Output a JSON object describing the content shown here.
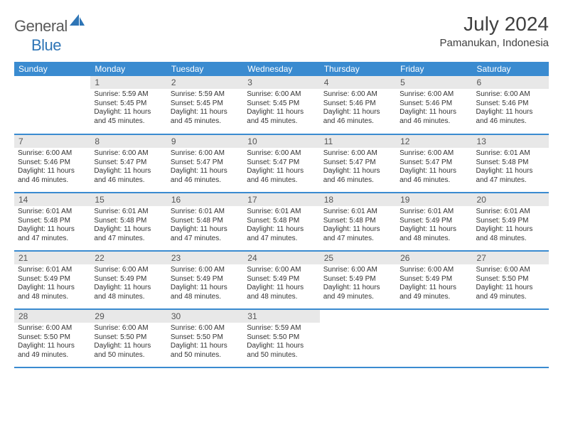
{
  "logo": {
    "text1": "General",
    "text2": "Blue",
    "color1": "#5a5a5a",
    "color2": "#2e75b6"
  },
  "title": "July 2024",
  "location": "Pamanukan, Indonesia",
  "colors": {
    "header_bg": "#3a8bd0",
    "header_fg": "#ffffff",
    "daynum_bg": "#e8e8e8",
    "daynum_fg": "#555555",
    "border": "#3a8bd0",
    "text": "#333333"
  },
  "weekdays": [
    "Sunday",
    "Monday",
    "Tuesday",
    "Wednesday",
    "Thursday",
    "Friday",
    "Saturday"
  ],
  "weeks": [
    [
      {
        "n": "",
        "sr": "",
        "ss": "",
        "dl": ""
      },
      {
        "n": "1",
        "sr": "5:59 AM",
        "ss": "5:45 PM",
        "dl": "11 hours and 45 minutes."
      },
      {
        "n": "2",
        "sr": "5:59 AM",
        "ss": "5:45 PM",
        "dl": "11 hours and 45 minutes."
      },
      {
        "n": "3",
        "sr": "6:00 AM",
        "ss": "5:45 PM",
        "dl": "11 hours and 45 minutes."
      },
      {
        "n": "4",
        "sr": "6:00 AM",
        "ss": "5:46 PM",
        "dl": "11 hours and 46 minutes."
      },
      {
        "n": "5",
        "sr": "6:00 AM",
        "ss": "5:46 PM",
        "dl": "11 hours and 46 minutes."
      },
      {
        "n": "6",
        "sr": "6:00 AM",
        "ss": "5:46 PM",
        "dl": "11 hours and 46 minutes."
      }
    ],
    [
      {
        "n": "7",
        "sr": "6:00 AM",
        "ss": "5:46 PM",
        "dl": "11 hours and 46 minutes."
      },
      {
        "n": "8",
        "sr": "6:00 AM",
        "ss": "5:47 PM",
        "dl": "11 hours and 46 minutes."
      },
      {
        "n": "9",
        "sr": "6:00 AM",
        "ss": "5:47 PM",
        "dl": "11 hours and 46 minutes."
      },
      {
        "n": "10",
        "sr": "6:00 AM",
        "ss": "5:47 PM",
        "dl": "11 hours and 46 minutes."
      },
      {
        "n": "11",
        "sr": "6:00 AM",
        "ss": "5:47 PM",
        "dl": "11 hours and 46 minutes."
      },
      {
        "n": "12",
        "sr": "6:00 AM",
        "ss": "5:47 PM",
        "dl": "11 hours and 46 minutes."
      },
      {
        "n": "13",
        "sr": "6:01 AM",
        "ss": "5:48 PM",
        "dl": "11 hours and 47 minutes."
      }
    ],
    [
      {
        "n": "14",
        "sr": "6:01 AM",
        "ss": "5:48 PM",
        "dl": "11 hours and 47 minutes."
      },
      {
        "n": "15",
        "sr": "6:01 AM",
        "ss": "5:48 PM",
        "dl": "11 hours and 47 minutes."
      },
      {
        "n": "16",
        "sr": "6:01 AM",
        "ss": "5:48 PM",
        "dl": "11 hours and 47 minutes."
      },
      {
        "n": "17",
        "sr": "6:01 AM",
        "ss": "5:48 PM",
        "dl": "11 hours and 47 minutes."
      },
      {
        "n": "18",
        "sr": "6:01 AM",
        "ss": "5:48 PM",
        "dl": "11 hours and 47 minutes."
      },
      {
        "n": "19",
        "sr": "6:01 AM",
        "ss": "5:49 PM",
        "dl": "11 hours and 48 minutes."
      },
      {
        "n": "20",
        "sr": "6:01 AM",
        "ss": "5:49 PM",
        "dl": "11 hours and 48 minutes."
      }
    ],
    [
      {
        "n": "21",
        "sr": "6:01 AM",
        "ss": "5:49 PM",
        "dl": "11 hours and 48 minutes."
      },
      {
        "n": "22",
        "sr": "6:00 AM",
        "ss": "5:49 PM",
        "dl": "11 hours and 48 minutes."
      },
      {
        "n": "23",
        "sr": "6:00 AM",
        "ss": "5:49 PM",
        "dl": "11 hours and 48 minutes."
      },
      {
        "n": "24",
        "sr": "6:00 AM",
        "ss": "5:49 PM",
        "dl": "11 hours and 48 minutes."
      },
      {
        "n": "25",
        "sr": "6:00 AM",
        "ss": "5:49 PM",
        "dl": "11 hours and 49 minutes."
      },
      {
        "n": "26",
        "sr": "6:00 AM",
        "ss": "5:49 PM",
        "dl": "11 hours and 49 minutes."
      },
      {
        "n": "27",
        "sr": "6:00 AM",
        "ss": "5:50 PM",
        "dl": "11 hours and 49 minutes."
      }
    ],
    [
      {
        "n": "28",
        "sr": "6:00 AM",
        "ss": "5:50 PM",
        "dl": "11 hours and 49 minutes."
      },
      {
        "n": "29",
        "sr": "6:00 AM",
        "ss": "5:50 PM",
        "dl": "11 hours and 50 minutes."
      },
      {
        "n": "30",
        "sr": "6:00 AM",
        "ss": "5:50 PM",
        "dl": "11 hours and 50 minutes."
      },
      {
        "n": "31",
        "sr": "5:59 AM",
        "ss": "5:50 PM",
        "dl": "11 hours and 50 minutes."
      },
      {
        "n": "",
        "sr": "",
        "ss": "",
        "dl": ""
      },
      {
        "n": "",
        "sr": "",
        "ss": "",
        "dl": ""
      },
      {
        "n": "",
        "sr": "",
        "ss": "",
        "dl": ""
      }
    ]
  ],
  "labels": {
    "sunrise": "Sunrise:",
    "sunset": "Sunset:",
    "daylight": "Daylight:"
  }
}
